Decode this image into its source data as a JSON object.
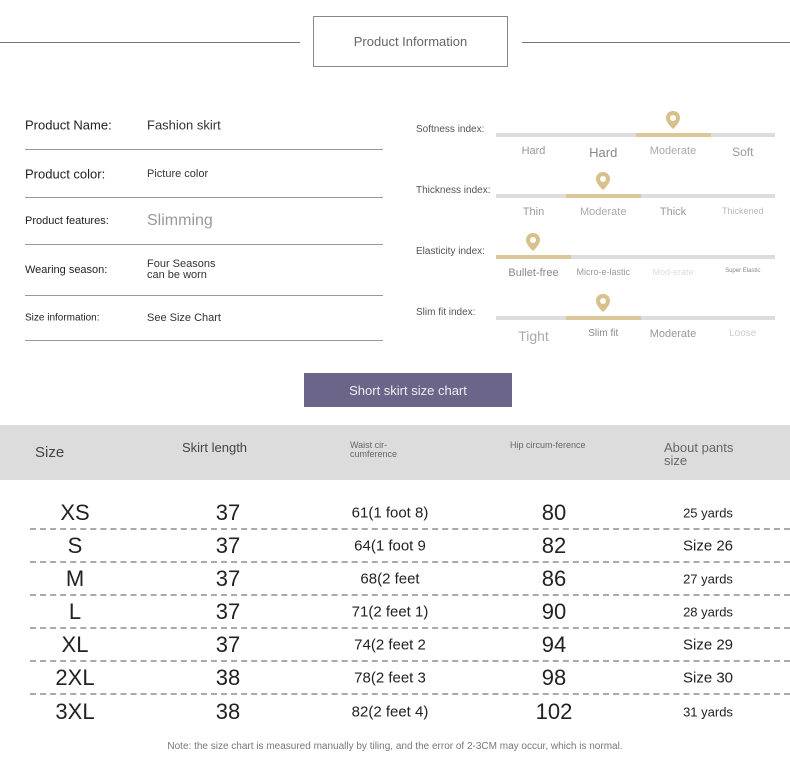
{
  "header": {
    "title": "Product Information"
  },
  "info": [
    {
      "label": "Product Name:",
      "value": "Fashion skirt"
    },
    {
      "label": "Product color:",
      "value": "Picture color"
    },
    {
      "label": "Product features:",
      "value": "Slimming"
    },
    {
      "label": "Wearing season:",
      "value": "Four Seasons can be worn"
    },
    {
      "label": "Size information:",
      "value": "See Size Chart"
    }
  ],
  "indices": [
    {
      "label": "Softness index:",
      "options": [
        "Hard",
        "Hard",
        "Moderate",
        "Soft"
      ],
      "selected": 2
    },
    {
      "label": "Thickness index:",
      "options": [
        "Thin",
        "Moderate",
        "Thick",
        "Thickened"
      ],
      "selected": 1
    },
    {
      "label": "Elasticity index:",
      "options": [
        "Bullet-free",
        "Micro-e-lastic",
        "Mod-erate",
        "Super Elastic"
      ],
      "selected": 0
    },
    {
      "label": "Slim fit index:",
      "options": [
        "Tight",
        "Slim fit",
        "Moderate",
        "Loose"
      ],
      "selected": 1
    }
  ],
  "accent_color": "#dcc79a",
  "button_color": "#6b6589",
  "size_chart": {
    "button": "Short skirt size chart",
    "headers": [
      "Size",
      "Skirt length",
      "Waist cir-cumference",
      "Hip circum-ference",
      "About pants size"
    ],
    "rows": [
      [
        "XS",
        "37",
        "61(1 foot 8)",
        "80",
        "25 yards"
      ],
      [
        "S",
        "37",
        "64(1 foot 9",
        "82",
        "Size 26"
      ],
      [
        "M",
        "37",
        "68(2 feet",
        "86",
        "27 yards"
      ],
      [
        "L",
        "37",
        "71(2 feet 1)",
        "90",
        "28 yards"
      ],
      [
        "XL",
        "37",
        "74(2 feet 2",
        "94",
        "Size 29"
      ],
      [
        "2XL",
        "38",
        "78(2 feet 3",
        "98",
        "Size 30"
      ],
      [
        "3XL",
        "38",
        "82(2 feet 4)",
        "102",
        "31 yards"
      ]
    ],
    "note": "Note: the size chart is measured manually by tiling, and the error of 2-3CM may occur, which is normal."
  }
}
